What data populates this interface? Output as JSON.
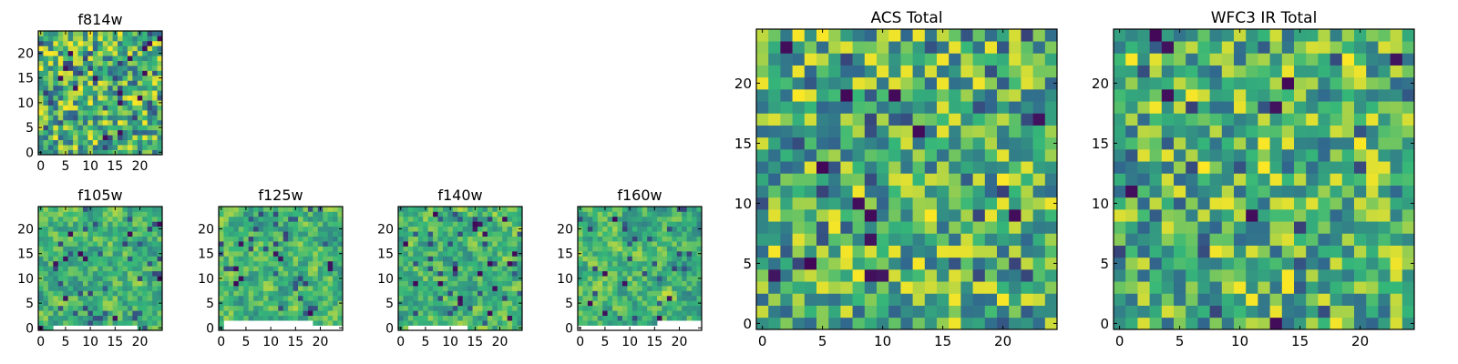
{
  "colormap": [
    "#440154",
    "#31688e",
    "#35b779",
    "#fde725"
  ],
  "chart_data": [
    {
      "type": "heatmap",
      "title": "f814w",
      "x_ticks": [
        0,
        5,
        10,
        15,
        20
      ],
      "y_ticks": [
        0,
        5,
        10,
        15,
        20
      ],
      "xlim": [
        -0.5,
        24.5
      ],
      "ylim": [
        -0.5,
        24.5
      ],
      "grid_size": 25,
      "seed": 11,
      "low_rate": 0.035,
      "smooth": 0,
      "missing_rows": []
    },
    {
      "type": "heatmap",
      "title": "f105w",
      "x_ticks": [
        0,
        5,
        10,
        15,
        20
      ],
      "y_ticks": [
        0,
        5,
        10,
        15,
        20
      ],
      "xlim": [
        -0.5,
        24.5
      ],
      "ylim": [
        -0.5,
        24.5
      ],
      "grid_size": 25,
      "seed": 23,
      "low_rate": 0.02,
      "smooth": 1,
      "missing_rows": [
        {
          "row": 0,
          "from": 3,
          "to": 19
        }
      ]
    },
    {
      "type": "heatmap",
      "title": "f125w",
      "x_ticks": [
        0,
        5,
        10,
        15,
        20
      ],
      "y_ticks": [
        0,
        5,
        10,
        15,
        20
      ],
      "xlim": [
        -0.5,
        24.5
      ],
      "ylim": [
        -0.5,
        24.5
      ],
      "grid_size": 25,
      "seed": 37,
      "low_rate": 0.02,
      "smooth": 1,
      "missing_rows": [
        {
          "row": 0,
          "from": 1,
          "to": 24
        },
        {
          "row": 1,
          "from": 1,
          "to": 18
        }
      ]
    },
    {
      "type": "heatmap",
      "title": "f140w",
      "x_ticks": [
        0,
        5,
        10,
        15,
        20
      ],
      "y_ticks": [
        0,
        5,
        10,
        15,
        20
      ],
      "xlim": [
        -0.5,
        24.5
      ],
      "ylim": [
        -0.5,
        24.5
      ],
      "grid_size": 25,
      "seed": 41,
      "low_rate": 0.02,
      "smooth": 1,
      "missing_rows": [
        {
          "row": 0,
          "from": 2,
          "to": 13
        }
      ]
    },
    {
      "type": "heatmap",
      "title": "f160w",
      "x_ticks": [
        0,
        5,
        10,
        15,
        20
      ],
      "y_ticks": [
        0,
        5,
        10,
        15,
        20
      ],
      "xlim": [
        -0.5,
        24.5
      ],
      "ylim": [
        -0.5,
        24.5
      ],
      "grid_size": 25,
      "seed": 53,
      "low_rate": 0.02,
      "smooth": 1,
      "missing_rows": [
        {
          "row": 0,
          "from": 0,
          "to": 24
        },
        {
          "row": 1,
          "from": 16,
          "to": 24
        }
      ]
    },
    {
      "type": "heatmap",
      "title": "ACS Total",
      "x_ticks": [
        0,
        5,
        10,
        15,
        20
      ],
      "y_ticks": [
        0,
        5,
        10,
        15,
        20
      ],
      "xlim": [
        -0.5,
        24.5
      ],
      "ylim": [
        -0.5,
        24.5
      ],
      "grid_size": 25,
      "seed": 67,
      "low_rate": 0.02,
      "smooth": 0,
      "missing_rows": []
    },
    {
      "type": "heatmap",
      "title": "WFC3 IR Total",
      "x_ticks": [
        0,
        5,
        10,
        15,
        20
      ],
      "y_ticks": [
        0,
        5,
        10,
        15,
        20
      ],
      "xlim": [
        -0.5,
        24.5
      ],
      "ylim": [
        -0.5,
        24.5
      ],
      "grid_size": 25,
      "seed": 79,
      "low_rate": 0.02,
      "smooth": 0,
      "missing_rows": []
    }
  ]
}
